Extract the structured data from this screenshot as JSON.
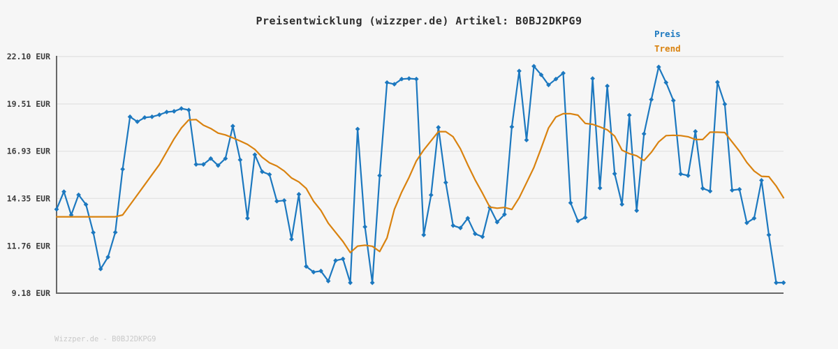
{
  "page": {
    "title": "Preisentwicklung (wizzper.de) Artikel: B0BJ2DKPG9",
    "watermark": "Wizzper.de - B0BJ2DKPG9"
  },
  "legend": {
    "position": "top-right",
    "items": [
      {
        "label": "Preis",
        "color": "#1c78bf"
      },
      {
        "label": "Trend",
        "color": "#d9820f"
      }
    ]
  },
  "chart_data": {
    "type": "line",
    "title": "Preisentwicklung (wizzper.de) Artikel: B0BJ2DKPG9",
    "xlabel": "",
    "ylabel": "",
    "currency": "EUR",
    "x_axis": {
      "type": "time-index",
      "labels_visible": false,
      "points": 100
    },
    "ylim": [
      9.18,
      22.1
    ],
    "grid": true,
    "legend_position": "top-right",
    "yticks": [
      {
        "value": 22.1,
        "label": "22.10 EUR"
      },
      {
        "value": 19.51,
        "label": "19.51 EUR"
      },
      {
        "value": 16.93,
        "label": "16.93 EUR"
      },
      {
        "value": 14.35,
        "label": "14.35 EUR"
      },
      {
        "value": 11.76,
        "label": "11.76 EUR"
      },
      {
        "value": 9.18,
        "label": "9.18 EUR"
      }
    ],
    "series": [
      {
        "name": "Preis",
        "color": "#1c78bf",
        "marker": "diamond",
        "values": [
          13.76,
          14.72,
          13.45,
          14.55,
          14.02,
          12.49,
          10.5,
          11.15,
          12.5,
          15.95,
          18.81,
          18.54,
          18.77,
          18.81,
          18.92,
          19.07,
          19.11,
          19.26,
          19.18,
          16.21,
          16.21,
          16.53,
          16.15,
          16.53,
          18.3,
          16.46,
          13.27,
          16.74,
          15.81,
          15.66,
          14.2,
          14.24,
          12.13,
          14.58,
          10.64,
          10.33,
          10.39,
          9.84,
          10.96,
          11.05,
          9.75,
          18.14,
          12.8,
          9.75,
          15.6,
          20.68,
          20.59,
          20.87,
          20.9,
          20.87,
          12.36,
          14.54,
          18.23,
          15.22,
          12.87,
          12.74,
          13.27,
          12.42,
          12.26,
          13.86,
          13.06,
          13.48,
          18.26,
          21.31,
          17.54,
          21.57,
          21.1,
          20.55,
          20.87,
          21.19,
          14.11,
          13.12,
          13.31,
          20.9,
          14.92,
          20.49,
          15.7,
          14.03,
          18.9,
          13.69,
          17.88,
          19.75,
          21.53,
          20.68,
          19.7,
          15.69,
          15.6,
          18.01,
          14.9,
          14.75,
          20.7,
          19.5,
          14.8,
          14.85,
          13.02,
          13.27,
          15.34,
          12.36,
          9.75,
          9.75
        ]
      },
      {
        "name": "Trend",
        "color": "#d9820f",
        "marker": null,
        "values": [
          13.35,
          13.35,
          13.35,
          13.35,
          13.35,
          13.35,
          13.35,
          13.35,
          13.35,
          13.45,
          14.0,
          14.55,
          15.1,
          15.65,
          16.2,
          16.9,
          17.6,
          18.2,
          18.64,
          18.66,
          18.35,
          18.17,
          17.92,
          17.82,
          17.66,
          17.49,
          17.3,
          17.03,
          16.6,
          16.3,
          16.12,
          15.85,
          15.47,
          15.25,
          14.9,
          14.2,
          13.7,
          13.0,
          12.5,
          12.0,
          11.4,
          11.75,
          11.8,
          11.74,
          11.45,
          12.2,
          13.75,
          14.7,
          15.5,
          16.4,
          17.0,
          17.5,
          18.0,
          18.0,
          17.72,
          17.06,
          16.19,
          15.36,
          14.64,
          13.88,
          13.82,
          13.86,
          13.75,
          14.39,
          15.21,
          16.04,
          17.1,
          18.2,
          18.8,
          18.98,
          18.98,
          18.9,
          18.45,
          18.4,
          18.26,
          18.1,
          17.75,
          16.99,
          16.8,
          16.68,
          16.42,
          16.87,
          17.44,
          17.78,
          17.8,
          17.78,
          17.72,
          17.57,
          17.57,
          17.97,
          17.97,
          17.95,
          17.44,
          16.93,
          16.32,
          15.85,
          15.56,
          15.54,
          15.03,
          14.39
        ]
      }
    ]
  }
}
